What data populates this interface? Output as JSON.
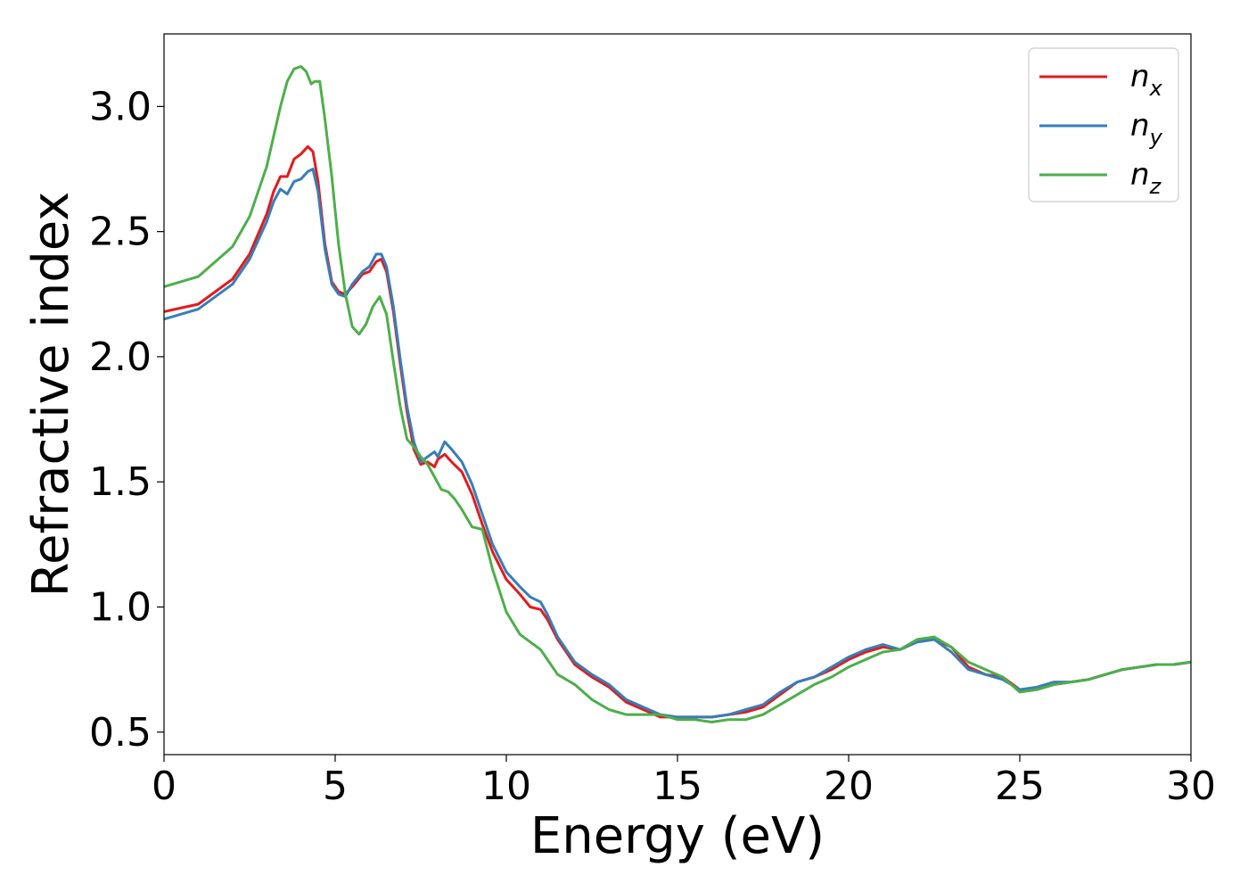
{
  "chart_data": {
    "type": "line",
    "xlabel": "Energy (eV)",
    "ylabel": "Refractive index",
    "xlim": [
      0,
      30
    ],
    "ylim": [
      0.41,
      3.29
    ],
    "xticks": [
      0,
      5,
      10,
      15,
      20,
      25,
      30
    ],
    "xtick_labels": [
      "0",
      "5",
      "10",
      "15",
      "20",
      "25",
      "30"
    ],
    "yticks": [
      0.5,
      1.0,
      1.5,
      2.0,
      2.5,
      3.0
    ],
    "ytick_labels": [
      "0.5",
      "1.0",
      "1.5",
      "2.0",
      "2.5",
      "3.0"
    ],
    "grid": false,
    "legend_position": "top-right",
    "series": [
      {
        "name": "n",
        "sub": "x",
        "color": "#e41a1c",
        "x": [
          0,
          1,
          2,
          2.5,
          3,
          3.2,
          3.4,
          3.6,
          3.8,
          4.0,
          4.2,
          4.35,
          4.5,
          4.7,
          4.9,
          5.1,
          5.3,
          5.5,
          5.8,
          6.0,
          6.2,
          6.35,
          6.5,
          6.7,
          6.9,
          7.1,
          7.3,
          7.5,
          7.7,
          7.9,
          8.0,
          8.2,
          8.4,
          8.7,
          9.0,
          9.3,
          9.6,
          10.0,
          10.4,
          10.7,
          11.0,
          11.2,
          11.5,
          12.0,
          12.5,
          13.0,
          13.5,
          14.0,
          14.5,
          15.0,
          15.5,
          16.0,
          16.5,
          17.0,
          17.5,
          18.0,
          18.5,
          19.0,
          19.5,
          20.0,
          20.5,
          21.0,
          21.5,
          22.0,
          22.5,
          23.0,
          23.5,
          24.0,
          24.5,
          25.0,
          25.5,
          26.0,
          26.5,
          27.0,
          27.5,
          28.0,
          28.5,
          29.0,
          29.5,
          30.0
        ],
        "values": [
          2.18,
          2.21,
          2.31,
          2.41,
          2.57,
          2.66,
          2.72,
          2.72,
          2.79,
          2.81,
          2.84,
          2.82,
          2.7,
          2.45,
          2.3,
          2.26,
          2.25,
          2.28,
          2.33,
          2.34,
          2.38,
          2.39,
          2.34,
          2.18,
          1.97,
          1.78,
          1.63,
          1.57,
          1.58,
          1.56,
          1.59,
          1.61,
          1.58,
          1.54,
          1.45,
          1.33,
          1.22,
          1.11,
          1.05,
          1.0,
          0.99,
          0.95,
          0.87,
          0.77,
          0.72,
          0.68,
          0.62,
          0.59,
          0.56,
          0.56,
          0.56,
          0.56,
          0.57,
          0.58,
          0.6,
          0.65,
          0.7,
          0.72,
          0.75,
          0.79,
          0.82,
          0.84,
          0.83,
          0.86,
          0.87,
          0.84,
          0.76,
          0.73,
          0.72,
          0.67,
          0.67,
          0.69,
          0.7,
          0.71,
          0.73,
          0.75,
          0.76,
          0.77,
          0.77,
          0.78
        ]
      },
      {
        "name": "n",
        "sub": "y",
        "color": "#377eb8",
        "x": [
          0,
          1,
          2,
          2.5,
          3,
          3.2,
          3.4,
          3.6,
          3.8,
          4.0,
          4.2,
          4.35,
          4.5,
          4.7,
          4.9,
          5.1,
          5.3,
          5.5,
          5.8,
          6.0,
          6.2,
          6.35,
          6.5,
          6.7,
          6.9,
          7.1,
          7.3,
          7.5,
          7.7,
          7.9,
          8.0,
          8.2,
          8.4,
          8.7,
          9.0,
          9.3,
          9.6,
          10.0,
          10.4,
          10.7,
          11.0,
          11.2,
          11.5,
          12.0,
          12.5,
          13.0,
          13.5,
          14.0,
          14.5,
          15.0,
          15.5,
          16.0,
          16.5,
          17.0,
          17.5,
          18.0,
          18.5,
          19.0,
          19.5,
          20.0,
          20.5,
          21.0,
          21.5,
          22.0,
          22.5,
          23.0,
          23.5,
          24.0,
          24.5,
          25.0,
          25.5,
          26.0,
          26.5,
          27.0,
          27.5,
          28.0,
          28.5,
          29.0,
          29.5,
          30.0
        ],
        "values": [
          2.15,
          2.19,
          2.29,
          2.39,
          2.54,
          2.62,
          2.67,
          2.65,
          2.7,
          2.71,
          2.74,
          2.75,
          2.66,
          2.43,
          2.29,
          2.25,
          2.24,
          2.29,
          2.34,
          2.36,
          2.41,
          2.41,
          2.36,
          2.2,
          1.99,
          1.8,
          1.66,
          1.58,
          1.6,
          1.62,
          1.6,
          1.66,
          1.63,
          1.58,
          1.49,
          1.37,
          1.25,
          1.14,
          1.08,
          1.04,
          1.02,
          0.97,
          0.88,
          0.78,
          0.73,
          0.69,
          0.63,
          0.6,
          0.57,
          0.56,
          0.56,
          0.56,
          0.57,
          0.59,
          0.61,
          0.66,
          0.7,
          0.72,
          0.76,
          0.8,
          0.83,
          0.85,
          0.83,
          0.86,
          0.87,
          0.82,
          0.75,
          0.73,
          0.71,
          0.67,
          0.68,
          0.7,
          0.7,
          0.71,
          0.73,
          0.75,
          0.76,
          0.77,
          0.77,
          0.78
        ]
      },
      {
        "name": "n",
        "sub": "z",
        "color": "#4daf4a",
        "x": [
          0,
          1,
          2,
          2.5,
          3,
          3.2,
          3.4,
          3.6,
          3.8,
          4.0,
          4.15,
          4.3,
          4.4,
          4.55,
          4.7,
          4.9,
          5.1,
          5.3,
          5.5,
          5.7,
          5.9,
          6.1,
          6.3,
          6.5,
          6.7,
          6.9,
          7.1,
          7.3,
          7.5,
          7.7,
          7.9,
          8.1,
          8.3,
          8.5,
          8.7,
          9.0,
          9.3,
          9.6,
          10.0,
          10.4,
          10.7,
          11.0,
          11.2,
          11.5,
          12.0,
          12.5,
          13.0,
          13.5,
          14.0,
          14.5,
          15.0,
          15.5,
          16.0,
          16.5,
          17.0,
          17.5,
          18.0,
          18.5,
          19.0,
          19.5,
          20.0,
          20.5,
          21.0,
          21.5,
          22.0,
          22.5,
          23.0,
          23.5,
          24.0,
          24.5,
          25.0,
          25.5,
          26.0,
          26.5,
          27.0,
          27.5,
          28.0,
          28.5,
          29.0,
          29.5,
          30.0
        ],
        "values": [
          2.28,
          2.32,
          2.44,
          2.56,
          2.76,
          2.88,
          3.0,
          3.1,
          3.15,
          3.16,
          3.14,
          3.09,
          3.1,
          3.1,
          2.95,
          2.72,
          2.45,
          2.25,
          2.12,
          2.09,
          2.13,
          2.2,
          2.24,
          2.17,
          1.98,
          1.8,
          1.67,
          1.64,
          1.6,
          1.57,
          1.52,
          1.47,
          1.46,
          1.43,
          1.39,
          1.32,
          1.31,
          1.15,
          0.98,
          0.89,
          0.86,
          0.83,
          0.79,
          0.73,
          0.69,
          0.63,
          0.59,
          0.57,
          0.57,
          0.57,
          0.55,
          0.55,
          0.54,
          0.55,
          0.55,
          0.57,
          0.61,
          0.65,
          0.69,
          0.72,
          0.76,
          0.79,
          0.82,
          0.83,
          0.87,
          0.88,
          0.84,
          0.78,
          0.75,
          0.72,
          0.66,
          0.67,
          0.69,
          0.7,
          0.71,
          0.73,
          0.75,
          0.76,
          0.77,
          0.77,
          0.78
        ]
      }
    ]
  }
}
